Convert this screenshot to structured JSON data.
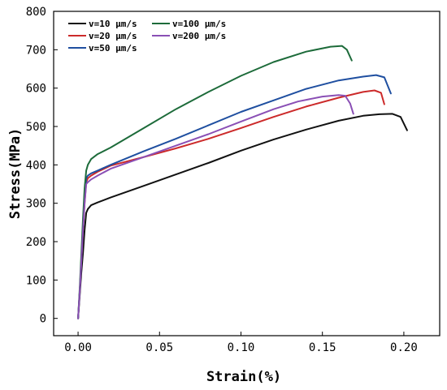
{
  "chart_data": {
    "type": "line",
    "title": "",
    "xlabel": "Strain(%)",
    "ylabel": "Stress(MPa)",
    "xlim": [
      -0.015,
      0.222
    ],
    "ylim": [
      -45,
      800
    ],
    "xticks": [
      0.0,
      0.05,
      0.1,
      0.15,
      0.2
    ],
    "xtick_labels": [
      "0.00",
      "0.05",
      "0.10",
      "0.15",
      "0.20"
    ],
    "yticks": [
      0,
      100,
      200,
      300,
      400,
      500,
      600,
      700,
      800
    ],
    "ytick_labels": [
      "0",
      "100",
      "200",
      "300",
      "400",
      "500",
      "600",
      "700",
      "800"
    ],
    "grid": false,
    "legend": {
      "placement": "top-left",
      "columns": 2
    },
    "series": [
      {
        "name": "v=10 μm/s",
        "color": "#111111",
        "points": [
          [
            0.0,
            0
          ],
          [
            0.001,
            60
          ],
          [
            0.002,
            120
          ],
          [
            0.003,
            170
          ],
          [
            0.004,
            230
          ],
          [
            0.005,
            275
          ],
          [
            0.006,
            285
          ],
          [
            0.008,
            295
          ],
          [
            0.012,
            302
          ],
          [
            0.02,
            315
          ],
          [
            0.04,
            345
          ],
          [
            0.06,
            375
          ],
          [
            0.08,
            405
          ],
          [
            0.1,
            437
          ],
          [
            0.12,
            466
          ],
          [
            0.14,
            492
          ],
          [
            0.16,
            515
          ],
          [
            0.175,
            528
          ],
          [
            0.185,
            532
          ],
          [
            0.193,
            533
          ],
          [
            0.198,
            525
          ],
          [
            0.202,
            490
          ]
        ]
      },
      {
        "name": "v=20 μm/s",
        "color": "#cc2a2a",
        "points": [
          [
            0.0,
            0
          ],
          [
            0.001,
            70
          ],
          [
            0.002,
            150
          ],
          [
            0.003,
            230
          ],
          [
            0.004,
            300
          ],
          [
            0.005,
            355
          ],
          [
            0.006,
            365
          ],
          [
            0.008,
            372
          ],
          [
            0.012,
            382
          ],
          [
            0.02,
            398
          ],
          [
            0.04,
            420
          ],
          [
            0.06,
            443
          ],
          [
            0.08,
            468
          ],
          [
            0.1,
            496
          ],
          [
            0.12,
            525
          ],
          [
            0.14,
            552
          ],
          [
            0.16,
            575
          ],
          [
            0.175,
            590
          ],
          [
            0.182,
            594
          ],
          [
            0.186,
            588
          ],
          [
            0.188,
            558
          ]
        ]
      },
      {
        "name": "v=50 μm/s",
        "color": "#1f4fa0",
        "points": [
          [
            0.0,
            0
          ],
          [
            0.001,
            70
          ],
          [
            0.002,
            150
          ],
          [
            0.003,
            240
          ],
          [
            0.004,
            310
          ],
          [
            0.005,
            365
          ],
          [
            0.006,
            372
          ],
          [
            0.008,
            378
          ],
          [
            0.012,
            385
          ],
          [
            0.02,
            400
          ],
          [
            0.04,
            435
          ],
          [
            0.06,
            468
          ],
          [
            0.08,
            503
          ],
          [
            0.1,
            538
          ],
          [
            0.12,
            568
          ],
          [
            0.14,
            598
          ],
          [
            0.16,
            620
          ],
          [
            0.175,
            630
          ],
          [
            0.183,
            634
          ],
          [
            0.188,
            628
          ],
          [
            0.192,
            586
          ]
        ]
      },
      {
        "name": "v=100 μm/s",
        "color": "#1d6b3a",
        "points": [
          [
            0.0,
            0
          ],
          [
            0.001,
            80
          ],
          [
            0.002,
            170
          ],
          [
            0.003,
            260
          ],
          [
            0.004,
            340
          ],
          [
            0.005,
            385
          ],
          [
            0.006,
            400
          ],
          [
            0.008,
            415
          ],
          [
            0.012,
            428
          ],
          [
            0.02,
            445
          ],
          [
            0.04,
            495
          ],
          [
            0.06,
            545
          ],
          [
            0.08,
            590
          ],
          [
            0.1,
            632
          ],
          [
            0.12,
            668
          ],
          [
            0.14,
            695
          ],
          [
            0.155,
            708
          ],
          [
            0.162,
            710
          ],
          [
            0.165,
            700
          ],
          [
            0.168,
            672
          ]
        ]
      },
      {
        "name": "v=200 μm/s",
        "color": "#8a4fb5",
        "points": [
          [
            0.0,
            0
          ],
          [
            0.001,
            70
          ],
          [
            0.002,
            150
          ],
          [
            0.003,
            230
          ],
          [
            0.004,
            300
          ],
          [
            0.005,
            350
          ],
          [
            0.006,
            355
          ],
          [
            0.008,
            362
          ],
          [
            0.012,
            372
          ],
          [
            0.02,
            390
          ],
          [
            0.04,
            420
          ],
          [
            0.06,
            450
          ],
          [
            0.08,
            480
          ],
          [
            0.1,
            513
          ],
          [
            0.12,
            545
          ],
          [
            0.135,
            565
          ],
          [
            0.15,
            578
          ],
          [
            0.16,
            582
          ],
          [
            0.164,
            580
          ],
          [
            0.167,
            560
          ],
          [
            0.169,
            533
          ]
        ]
      }
    ]
  }
}
